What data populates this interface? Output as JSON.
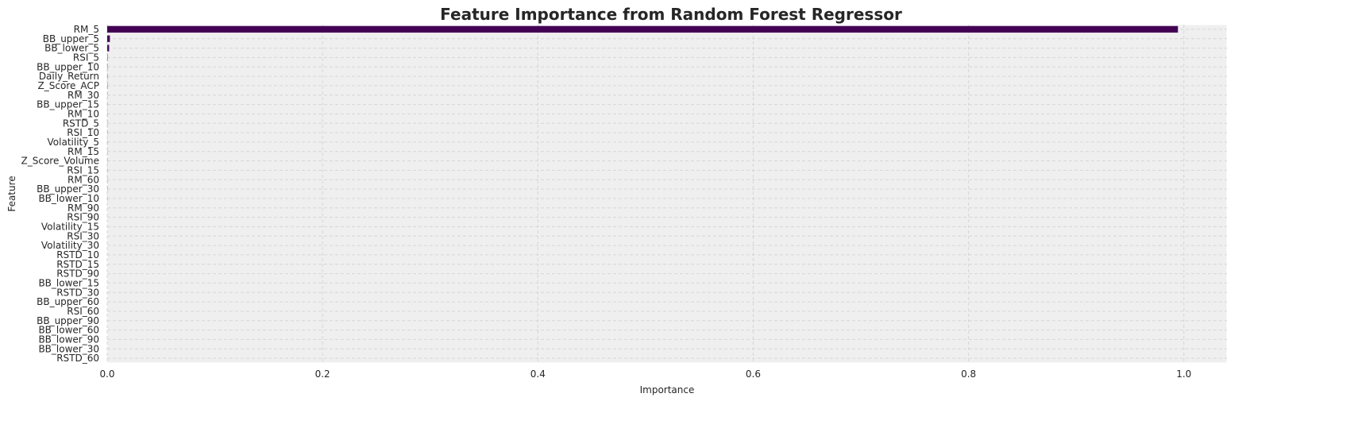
{
  "chart_data": {
    "type": "bar",
    "orientation": "horizontal",
    "title": "Feature Importance from Random Forest Regressor",
    "xlabel": "Importance",
    "ylabel": "Feature",
    "xlim": [
      0,
      1.04
    ],
    "xticks": [
      "0.0",
      "0.2",
      "0.4",
      "0.6",
      "0.8",
      "1.0"
    ],
    "grid": true,
    "categories": [
      "RM_5",
      "BB_upper_5",
      "BB_lower_5",
      "RSI_5",
      "BB_upper_10",
      "Daily_Return",
      "Z_Score_ACP",
      "RM_30",
      "BB_upper_15",
      "RM_10",
      "RSTD_5",
      "RSI_10",
      "Volatility_5",
      "RM_15",
      "Z_Score_Volume",
      "RSI_15",
      "RM_60",
      "BB_upper_30",
      "BB_lower_10",
      "RM_90",
      "RSI_90",
      "Volatility_15",
      "RSI_30",
      "Volatility_30",
      "RSTD_10",
      "RSTD_15",
      "RSTD_90",
      "BB_lower_15",
      "RSTD_30",
      "BB_upper_60",
      "RSI_60",
      "BB_upper_90",
      "BB_lower_60",
      "BB_lower_90",
      "BB_lower_30",
      "RSTD_60"
    ],
    "values": [
      0.9945,
      0.0025,
      0.0018,
      0.0003,
      0.0002,
      0.0002,
      0.0002,
      0.0001,
      0.0001,
      0.0001,
      0.0001,
      0.0001,
      0.0001,
      0.0001,
      0.0001,
      0.0001,
      0.0001,
      0.0001,
      0.0001,
      0.0,
      0.0,
      0.0,
      0.0,
      0.0,
      0.0,
      0.0,
      0.0,
      0.0,
      0.0,
      0.0,
      0.0,
      0.0,
      0.0,
      0.0,
      0.0,
      0.0
    ],
    "palette": {
      "first": "#440154",
      "second": "#46085c",
      "third": "#471063",
      "background": "#efefef",
      "grid": "#d6d6d6"
    }
  }
}
